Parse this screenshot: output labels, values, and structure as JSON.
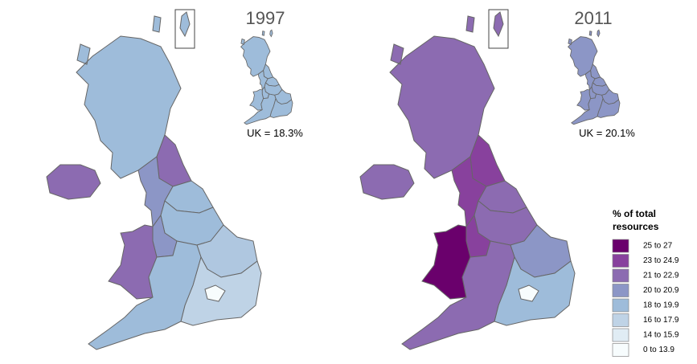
{
  "maps": [
    {
      "title": "1997",
      "uk_label": "UK = 18.3%"
    },
    {
      "title": "2011",
      "uk_label": "UK = 20.1%"
    }
  ],
  "legend": {
    "title_lines": [
      "% of total",
      "resources"
    ],
    "items": [
      {
        "label": "25 to 27",
        "color": "#6a006c"
      },
      {
        "label": "23 to 24.9",
        "color": "#88419d"
      },
      {
        "label": "21 to 22.9",
        "color": "#8c6bb1"
      },
      {
        "label": "20 to 20.9",
        "color": "#8c96c6"
      },
      {
        "label": "18 to 19.9",
        "color": "#9ebcda"
      },
      {
        "label": "16 to 17.9",
        "color": "#bfd3e6"
      },
      {
        "label": "14 to 15.9",
        "color": "#e0ecf4"
      },
      {
        "label": "0 to 13.9",
        "color": "#f7fcfd"
      }
    ]
  }
}
